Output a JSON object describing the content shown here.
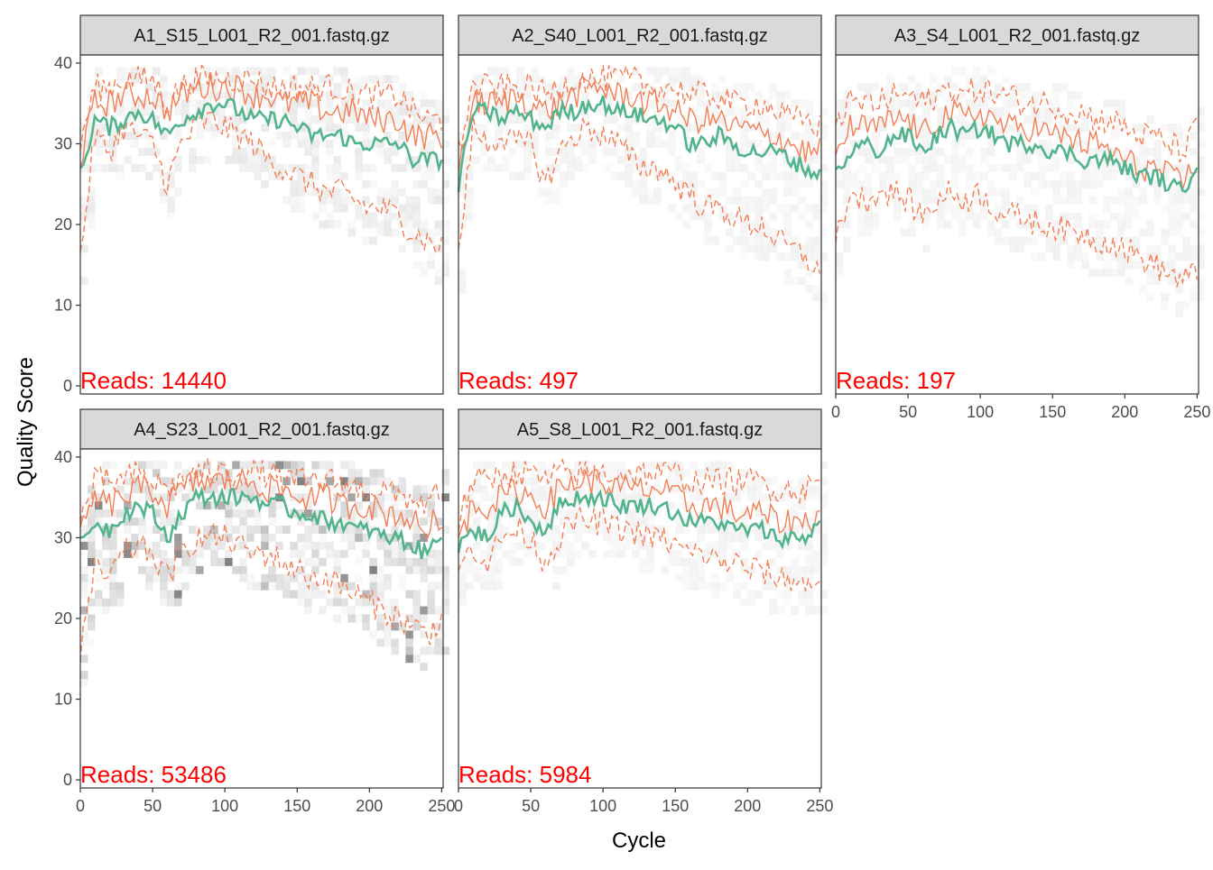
{
  "chart_data": {
    "type": "line",
    "layout": "facet-grid",
    "xlabel": "Cycle",
    "ylabel": "Quality Score",
    "xlim": [
      0,
      251
    ],
    "ylim": [
      -1,
      41
    ],
    "x_ticks": [
      0,
      50,
      100,
      150,
      200,
      250
    ],
    "y_ticks": [
      0,
      10,
      20,
      30,
      40
    ],
    "colors": {
      "mean": "#52b48d",
      "quartile": "#f47e55",
      "heat": "#d9d9d9",
      "reads_label": "#ff0000",
      "strip_fill": "#d9d9d9"
    },
    "facets": [
      {
        "title": "A1_S15_L001_R2_001.fastq.gz",
        "reads_label": "Reads:  14440",
        "mean_x": [
          0,
          10,
          20,
          30,
          40,
          50,
          60,
          70,
          80,
          90,
          100,
          110,
          120,
          130,
          140,
          150,
          160,
          170,
          180,
          190,
          200,
          210,
          220,
          230,
          240,
          250
        ],
        "mean_y": [
          26,
          33,
          32,
          33,
          34,
          33,
          31,
          33,
          34,
          35,
          35,
          34,
          33,
          33,
          33,
          32,
          31,
          31,
          31,
          30,
          30,
          30,
          30,
          28,
          28,
          28
        ],
        "q75_y": [
          30,
          37,
          37,
          38,
          38,
          38,
          35,
          37,
          38,
          38,
          38,
          38,
          38,
          37,
          37,
          37,
          37,
          37,
          37,
          36,
          36,
          36,
          36,
          34,
          33,
          33
        ],
        "median_y": [
          28,
          35,
          35,
          36,
          36,
          36,
          34,
          36,
          37,
          37,
          37,
          37,
          36,
          36,
          35,
          35,
          35,
          34,
          34,
          34,
          33,
          33,
          33,
          31,
          31,
          31
        ],
        "q25_y": [
          16,
          31,
          29,
          32,
          31,
          30,
          25,
          30,
          32,
          33,
          32,
          31,
          30,
          28,
          27,
          26,
          25,
          24,
          24,
          23,
          22,
          22,
          21,
          19,
          18,
          17
        ]
      },
      {
        "title": "A2_S40_L001_R2_001.fastq.gz",
        "reads_label": "Reads:  497",
        "mean_x": [
          0,
          10,
          20,
          30,
          40,
          50,
          60,
          70,
          80,
          90,
          100,
          110,
          120,
          130,
          140,
          150,
          160,
          170,
          180,
          190,
          200,
          210,
          220,
          230,
          240,
          250
        ],
        "mean_y": [
          25,
          34,
          34,
          33,
          34,
          33,
          32,
          34,
          34,
          35,
          35,
          34,
          34,
          33,
          33,
          32,
          30,
          30,
          31,
          30,
          29,
          29,
          29,
          28,
          27,
          26
        ],
        "q75_y": [
          29,
          37,
          37,
          37,
          37,
          37,
          36,
          37,
          38,
          38,
          38,
          38,
          38,
          37,
          37,
          37,
          36,
          36,
          36,
          35,
          35,
          35,
          34,
          33,
          33,
          32
        ],
        "median_y": [
          27,
          35,
          35,
          35,
          36,
          35,
          34,
          35,
          36,
          37,
          37,
          36,
          36,
          35,
          35,
          34,
          33,
          33,
          33,
          32,
          32,
          31,
          31,
          30,
          29,
          29
        ],
        "q25_y": [
          16,
          32,
          30,
          31,
          30,
          30,
          25,
          29,
          31,
          32,
          31,
          30,
          28,
          27,
          27,
          25,
          24,
          22,
          22,
          21,
          20,
          20,
          18,
          17,
          16,
          14
        ]
      },
      {
        "title": "A3_S4_L001_R2_001.fastq.gz",
        "reads_label": "Reads:  197",
        "mean_x": [
          0,
          10,
          20,
          30,
          40,
          50,
          60,
          70,
          80,
          90,
          100,
          110,
          120,
          130,
          140,
          150,
          160,
          170,
          180,
          190,
          200,
          210,
          220,
          230,
          240,
          250
        ],
        "mean_y": [
          26,
          29,
          30,
          29,
          31,
          31,
          29,
          31,
          32,
          31,
          32,
          31,
          30,
          30,
          30,
          29,
          29,
          28,
          28,
          28,
          27,
          26,
          26,
          25,
          24,
          28
        ],
        "q75_y": [
          33,
          35,
          35,
          35,
          36,
          36,
          35,
          36,
          37,
          36,
          37,
          36,
          36,
          35,
          35,
          35,
          34,
          34,
          33,
          33,
          32,
          31,
          31,
          30,
          29,
          32
        ],
        "median_y": [
          29,
          32,
          32,
          32,
          33,
          33,
          31,
          33,
          34,
          33,
          34,
          33,
          32,
          32,
          32,
          31,
          31,
          30,
          30,
          29,
          28,
          27,
          27,
          26,
          25,
          28
        ],
        "q25_y": [
          18,
          24,
          23,
          24,
          24,
          23,
          21,
          23,
          24,
          23,
          24,
          22,
          21,
          21,
          20,
          20,
          19,
          19,
          18,
          18,
          17,
          16,
          15,
          14,
          13,
          14
        ]
      },
      {
        "title": "A4_S23_L001_R2_001.fastq.gz",
        "reads_label": "Reads:  53486",
        "mean_x": [
          0,
          10,
          20,
          30,
          40,
          50,
          60,
          70,
          80,
          90,
          100,
          110,
          120,
          130,
          140,
          150,
          160,
          170,
          180,
          190,
          200,
          210,
          220,
          230,
          240,
          250
        ],
        "mean_y": [
          29,
          32,
          31,
          33,
          34,
          33,
          30,
          33,
          35,
          35,
          35,
          35,
          35,
          34,
          34,
          33,
          33,
          32,
          32,
          31,
          31,
          30,
          30,
          29,
          28,
          31
        ],
        "q75_y": [
          32,
          37,
          37,
          37,
          38,
          37,
          36,
          37,
          38,
          38,
          38,
          38,
          38,
          38,
          37,
          37,
          37,
          37,
          37,
          36,
          36,
          36,
          35,
          35,
          34,
          36
        ],
        "median_y": [
          30,
          35,
          34,
          35,
          36,
          36,
          34,
          36,
          37,
          37,
          37,
          37,
          37,
          36,
          36,
          35,
          35,
          35,
          34,
          34,
          34,
          33,
          33,
          32,
          31,
          33
        ],
        "q25_y": [
          16,
          26,
          25,
          28,
          29,
          28,
          25,
          28,
          30,
          30,
          30,
          29,
          28,
          28,
          27,
          26,
          25,
          25,
          24,
          23,
          22,
          21,
          20,
          19,
          18,
          20
        ]
      },
      {
        "title": "A5_S8_L001_R2_001.fastq.gz",
        "reads_label": "Reads:  5984",
        "mean_x": [
          0,
          10,
          20,
          30,
          40,
          50,
          60,
          70,
          80,
          90,
          100,
          110,
          120,
          130,
          140,
          150,
          160,
          170,
          180,
          190,
          200,
          210,
          220,
          230,
          240,
          250
        ],
        "mean_y": [
          29,
          31,
          30,
          33,
          34,
          32,
          31,
          34,
          35,
          35,
          35,
          34,
          34,
          34,
          34,
          33,
          32,
          32,
          32,
          31,
          31,
          31,
          30,
          30,
          30,
          32
        ],
        "q75_y": [
          32,
          37,
          37,
          38,
          38,
          38,
          37,
          38,
          38,
          38,
          38,
          38,
          38,
          38,
          38,
          38,
          37,
          37,
          37,
          37,
          37,
          37,
          36,
          36,
          36,
          37
        ],
        "median_y": [
          30,
          34,
          34,
          35,
          36,
          35,
          34,
          36,
          37,
          37,
          37,
          36,
          36,
          36,
          36,
          35,
          34,
          34,
          34,
          33,
          33,
          33,
          32,
          32,
          32,
          33
        ],
        "q25_y": [
          26,
          29,
          27,
          30,
          31,
          30,
          27,
          30,
          32,
          32,
          32,
          31,
          31,
          30,
          30,
          29,
          28,
          28,
          27,
          27,
          26,
          26,
          25,
          25,
          24,
          25
        ]
      }
    ]
  }
}
